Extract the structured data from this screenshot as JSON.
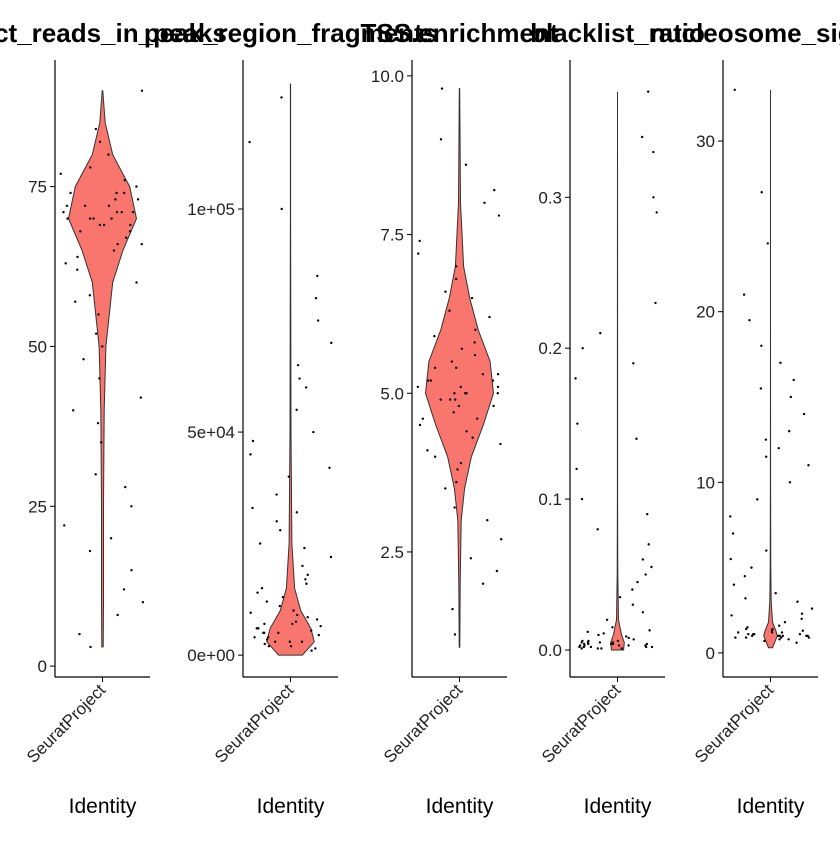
{
  "chart_data": [
    {
      "type": "violin",
      "title": "pct_reads_in_peaks",
      "xlabel": "Identity",
      "category": "SeuratProject",
      "color": "#F8766D",
      "ylim": [
        -1.7,
        94.8
      ],
      "yticks": [
        0,
        25,
        50,
        75
      ],
      "profile": {
        "y": [
          3,
          10,
          25,
          40,
          50,
          60,
          65,
          70,
          75,
          80,
          85,
          90
        ],
        "density": [
          0.02,
          0.03,
          0.03,
          0.05,
          0.1,
          0.3,
          0.6,
          1,
          0.8,
          0.3,
          0.08,
          0.01
        ]
      },
      "values": [
        70,
        72,
        68,
        74,
        66,
        71,
        69,
        73,
        75,
        67,
        70,
        76,
        64,
        72,
        69,
        71,
        78,
        62,
        70,
        73,
        68,
        74,
        65,
        71,
        80,
        60,
        57,
        55,
        52,
        48,
        45,
        40,
        35,
        30,
        28,
        25,
        20,
        15,
        12,
        10,
        8,
        5,
        3,
        82,
        84,
        77,
        63,
        58,
        70,
        72,
        69,
        71,
        66,
        74,
        90,
        42,
        18,
        22,
        38,
        50
      ]
    },
    {
      "type": "violin",
      "title": "peak_region_fragments",
      "xlabel": "Identity",
      "category": "SeuratProject",
      "color": "#F8766D",
      "ylim": [
        -4900,
        133400
      ],
      "yticks": [
        {
          "value": 0,
          "label": "0e+00"
        },
        {
          "value": 50000,
          "label": "5e+04"
        },
        {
          "value": 100000,
          "label": "1e+05"
        }
      ],
      "profile": {
        "y": [
          0,
          3000,
          6000,
          10000,
          15000,
          25000,
          50000,
          100000,
          128000
        ],
        "density": [
          0.35,
          0.7,
          0.6,
          0.3,
          0.12,
          0.04,
          0.015,
          0.004,
          0.002
        ]
      },
      "values": [
        2000,
        4000,
        6000,
        3000,
        5000,
        7000,
        8000,
        1000,
        9000,
        10000,
        4500,
        5500,
        6500,
        3500,
        2500,
        12000,
        11000,
        13000,
        14000,
        15000,
        7500,
        8500,
        2000,
        3000,
        16000,
        18000,
        20000,
        22000,
        25000,
        28000,
        30000,
        33000,
        36000,
        40000,
        45000,
        50000,
        55000,
        60000,
        65000,
        70000,
        75000,
        85000,
        100000,
        115000,
        125000,
        6000,
        4000,
        5000,
        3000,
        9500,
        1500,
        17000,
        24000,
        32000,
        42000,
        80000,
        62000,
        48000,
        7000,
        5000
      ]
    },
    {
      "type": "violin",
      "title": "TSS.enrichment",
      "xlabel": "Identity",
      "category": "SeuratProject",
      "color": "#F8766D",
      "ylim": [
        0.53,
        10.25
      ],
      "yticks": [
        2.5,
        {
          "value": 5,
          "label": "5.0"
        },
        7.5,
        {
          "value": 10,
          "label": "10.0"
        }
      ],
      "profile": {
        "y": [
          1,
          2,
          3,
          3.5,
          4,
          4.5,
          5,
          5.5,
          6,
          6.5,
          7,
          8,
          9.8
        ],
        "density": [
          0.01,
          0.02,
          0.05,
          0.15,
          0.35,
          0.7,
          1,
          0.9,
          0.55,
          0.3,
          0.12,
          0.03,
          0.005
        ]
      },
      "values": [
        5.0,
        5.2,
        4.8,
        5.4,
        4.6,
        5.1,
        4.9,
        5.3,
        5.6,
        4.4,
        5.0,
        5.8,
        4.2,
        6.0,
        4.0,
        6.3,
        3.8,
        6.6,
        3.5,
        7.0,
        3.2,
        7.4,
        3.0,
        7.8,
        2.7,
        8.2,
        2.4,
        8.6,
        2.0,
        9.0,
        1.6,
        9.8,
        1.2,
        5.5,
        4.7,
        5.2,
        4.9,
        5.7,
        4.3,
        6.2,
        5.0,
        5.1,
        4.8,
        5.3,
        4.5,
        6.8,
        3.6,
        7.2,
        5.9,
        4.1,
        5.4,
        4.6,
        5.0,
        5.2,
        8.0,
        2.2,
        6.5,
        3.9,
        5.1,
        4.9
      ]
    },
    {
      "type": "violin",
      "title": "blacklist_ratio",
      "xlabel": "Identity",
      "category": "SeuratProject",
      "color": "#F8766D",
      "ylim": [
        -0.0179,
        0.391
      ],
      "yticks": [
        {
          "value": 0,
          "label": "0.0"
        },
        0.1,
        0.2,
        0.3
      ],
      "profile": {
        "y": [
          0,
          0.005,
          0.01,
          0.02,
          0.05,
          0.1,
          0.2,
          0.37
        ],
        "density": [
          0.18,
          0.2,
          0.12,
          0.03,
          0.008,
          0.004,
          0.002,
          0.001
        ]
      },
      "values": [
        0.001,
        0.003,
        0.005,
        0.002,
        0.004,
        0.006,
        0.008,
        0.001,
        0.002,
        0.003,
        0.007,
        0.009,
        0.004,
        0.005,
        0.002,
        0.006,
        0.01,
        0.012,
        0.015,
        0.02,
        0.025,
        0.03,
        0.035,
        0.04,
        0.05,
        0.06,
        0.07,
        0.08,
        0.1,
        0.12,
        0.15,
        0.18,
        0.2,
        0.21,
        0.23,
        0.29,
        0.3,
        0.33,
        0.34,
        0.37,
        0.003,
        0.004,
        0.002,
        0.005,
        0.001,
        0.006,
        0.003,
        0.004,
        0.011,
        0.013,
        0.045,
        0.055,
        0.09,
        0.14,
        0.19,
        0.003,
        0.002,
        0.005,
        0.004,
        0.001
      ]
    },
    {
      "type": "violin",
      "title": "nucleosome_signal",
      "xlabel": "Identity",
      "category": "SeuratProject",
      "color": "#F8766D",
      "ylim": [
        -1.41,
        34.75
      ],
      "yticks": [
        0,
        10,
        20,
        30
      ],
      "profile": {
        "y": [
          0.3,
          0.8,
          1,
          1.3,
          1.8,
          3,
          5,
          10,
          20,
          33
        ],
        "density": [
          0.06,
          0.16,
          0.2,
          0.16,
          0.06,
          0.02,
          0.008,
          0.003,
          0.001,
          0.0005
        ]
      },
      "values": [
        1.0,
        1.1,
        0.9,
        1.2,
        0.8,
        1.3,
        1.0,
        1.4,
        0.7,
        1.5,
        1.1,
        0.9,
        1.2,
        1.0,
        1.6,
        0.6,
        1.8,
        2.0,
        2.3,
        2.6,
        3.0,
        3.5,
        4.0,
        4.5,
        5.0,
        6.0,
        7.0,
        8.0,
        9.0,
        10.0,
        11.0,
        12.0,
        13.0,
        14.0,
        15.0,
        16.0,
        17.0,
        18.0,
        19.5,
        21.0,
        24.0,
        27.0,
        33.0,
        1.1,
        0.9,
        1.0,
        1.2,
        1.3,
        0.8,
        1.0,
        1.4,
        2.2,
        3.2,
        5.5,
        11.5,
        12.5,
        15.5,
        1.1,
        0.9,
        1.0
      ]
    }
  ]
}
